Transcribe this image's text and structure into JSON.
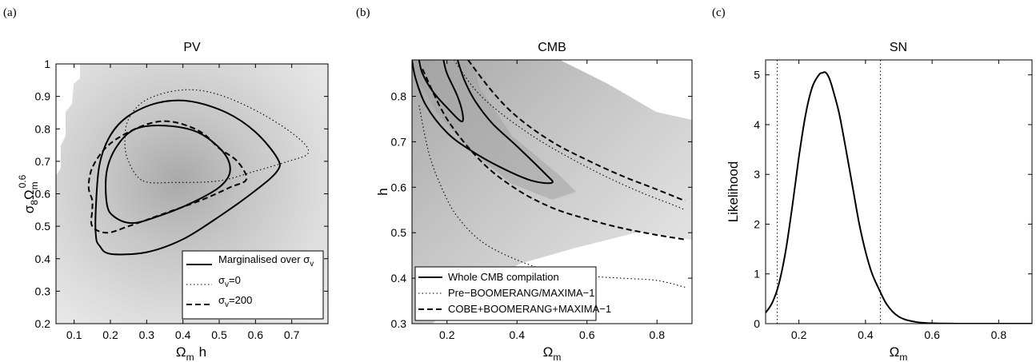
{
  "chart_data": [
    {
      "panel_label": "(a)",
      "type": "contour",
      "title": "PV",
      "xlabel_main": "Ω",
      "xlabel_sub": "m",
      "xlabel_extra": "h",
      "ylabel_a": "σ",
      "ylabel_a_sub": "8",
      "ylabel_b": "Ω",
      "ylabel_b_sub": "m",
      "ylabel_sup": "0.6",
      "xlim": [
        0.05,
        0.8
      ],
      "ylim": [
        0.2,
        1.0
      ],
      "xticks": [
        0.1,
        0.2,
        0.3,
        0.4,
        0.5,
        0.6,
        0.7
      ],
      "xtick_labels": [
        "0.1",
        "0.2",
        "0.3",
        "0.4",
        "0.5",
        "0.6",
        "0.7"
      ],
      "yticks": [
        0.2,
        0.3,
        0.4,
        0.5,
        0.6,
        0.7,
        0.8,
        0.9,
        1.0
      ],
      "ytick_labels": [
        "0.2",
        "0.3",
        "0.4",
        "0.5",
        "0.6",
        "0.7",
        "0.8",
        "0.9",
        "1"
      ],
      "background": "grey likelihood shading peaking near Ωm≈0.35, σ8Ωm^0.6≈0.7",
      "contours": [
        {
          "series": "marginalised",
          "style": "solid",
          "level": "inner",
          "points": [
            [
              0.19,
              0.57
            ],
            [
              0.21,
              0.53
            ],
            [
              0.26,
              0.51
            ],
            [
              0.33,
              0.53
            ],
            [
              0.42,
              0.57
            ],
            [
              0.5,
              0.62
            ],
            [
              0.53,
              0.67
            ],
            [
              0.51,
              0.73
            ],
            [
              0.44,
              0.79
            ],
            [
              0.35,
              0.81
            ],
            [
              0.27,
              0.8
            ],
            [
              0.22,
              0.75
            ],
            [
              0.19,
              0.67
            ]
          ]
        },
        {
          "series": "marginalised",
          "style": "solid",
          "level": "outer",
          "points": [
            [
              0.16,
              0.47
            ],
            [
              0.17,
              0.44
            ],
            [
              0.2,
              0.415
            ],
            [
              0.3,
              0.42
            ],
            [
              0.4,
              0.46
            ],
            [
              0.5,
              0.53
            ],
            [
              0.6,
              0.61
            ],
            [
              0.66,
              0.67
            ],
            [
              0.66,
              0.71
            ],
            [
              0.6,
              0.79
            ],
            [
              0.52,
              0.85
            ],
            [
              0.42,
              0.885
            ],
            [
              0.33,
              0.88
            ],
            [
              0.25,
              0.84
            ],
            [
              0.2,
              0.78
            ],
            [
              0.17,
              0.69
            ],
            [
              0.16,
              0.56
            ]
          ]
        },
        {
          "series": "sigma_v_0",
          "style": "dotted",
          "level": "1",
          "points": [
            [
              0.29,
              0.64
            ],
            [
              0.38,
              0.635
            ],
            [
              0.5,
              0.64
            ],
            [
              0.6,
              0.67
            ],
            [
              0.69,
              0.7
            ],
            [
              0.745,
              0.725
            ],
            [
              0.72,
              0.77
            ],
            [
              0.62,
              0.845
            ],
            [
              0.5,
              0.905
            ],
            [
              0.4,
              0.92
            ],
            [
              0.3,
              0.89
            ],
            [
              0.25,
              0.83
            ],
            [
              0.24,
              0.76
            ],
            [
              0.25,
              0.7
            ]
          ]
        },
        {
          "series": "sigma_v_200",
          "style": "dashed",
          "level": "1",
          "points": [
            [
              0.15,
              0.58
            ],
            [
              0.14,
              0.62
            ],
            [
              0.15,
              0.68
            ],
            [
              0.19,
              0.745
            ],
            [
              0.25,
              0.79
            ],
            [
              0.32,
              0.82
            ],
            [
              0.38,
              0.82
            ],
            [
              0.45,
              0.79
            ],
            [
              0.5,
              0.74
            ],
            [
              0.55,
              0.7
            ],
            [
              0.575,
              0.645
            ],
            [
              0.53,
              0.62
            ],
            [
              0.45,
              0.58
            ],
            [
              0.35,
              0.54
            ],
            [
              0.25,
              0.5
            ],
            [
              0.19,
              0.48
            ],
            [
              0.15,
              0.5
            ],
            [
              0.15,
              0.55
            ]
          ]
        }
      ],
      "legend": {
        "position": "bottom-right",
        "entries": [
          {
            "key": "marginalised",
            "style": "solid",
            "label_main": "Marginalised over σ",
            "label_sub": "v"
          },
          {
            "key": "sigma_v_0",
            "style": "dotted",
            "label_main": "σ",
            "label_sub": "v",
            "label_tail": "=0"
          },
          {
            "key": "sigma_v_200",
            "style": "dashed",
            "label_main": "σ",
            "label_sub": "v",
            "label_tail": "=200"
          }
        ]
      }
    },
    {
      "panel_label": "(b)",
      "type": "contour",
      "title": "CMB",
      "xlabel_main": "Ω",
      "xlabel_sub": "m",
      "ylabel": "h",
      "xlim": [
        0.1,
        0.9
      ],
      "ylim": [
        0.3,
        0.88
      ],
      "xticks": [
        0.2,
        0.4,
        0.6,
        0.8
      ],
      "xtick_labels": [
        "0.2",
        "0.4",
        "0.6",
        "0.8"
      ],
      "yticks": [
        0.3,
        0.4,
        0.5,
        0.6,
        0.7,
        0.8
      ],
      "ytick_labels": [
        "0.3",
        "0.4",
        "0.5",
        "0.6",
        "0.7",
        "0.8"
      ],
      "background": "grey likelihood band along the Ωm–h degeneracy",
      "contours": [
        {
          "series": "whole",
          "style": "solid",
          "level": "inner",
          "points": [
            [
              0.12,
              0.88
            ],
            [
              0.13,
              0.85
            ],
            [
              0.16,
              0.81
            ],
            [
              0.2,
              0.775
            ],
            [
              0.24,
              0.745
            ],
            [
              0.245,
              0.76
            ],
            [
              0.23,
              0.8
            ],
            [
              0.2,
              0.85
            ],
            [
              0.19,
              0.88
            ]
          ]
        },
        {
          "series": "whole",
          "style": "solid",
          "level": "outer",
          "points": [
            [
              0.1,
              0.88
            ],
            [
              0.11,
              0.84
            ],
            [
              0.14,
              0.78
            ],
            [
              0.2,
              0.72
            ],
            [
              0.27,
              0.68
            ],
            [
              0.35,
              0.645
            ],
            [
              0.44,
              0.615
            ],
            [
              0.5,
              0.61
            ],
            [
              0.48,
              0.63
            ],
            [
              0.4,
              0.69
            ],
            [
              0.33,
              0.74
            ],
            [
              0.28,
              0.79
            ],
            [
              0.25,
              0.835
            ],
            [
              0.23,
              0.88
            ]
          ]
        },
        {
          "series": "pre_boomerang",
          "style": "dotted",
          "level": "upper",
          "points": [
            [
              0.22,
              0.88
            ],
            [
              0.28,
              0.815
            ],
            [
              0.35,
              0.765
            ],
            [
              0.45,
              0.71
            ],
            [
              0.55,
              0.665
            ],
            [
              0.65,
              0.625
            ],
            [
              0.75,
              0.59
            ],
            [
              0.85,
              0.56
            ],
            [
              0.88,
              0.55
            ]
          ]
        },
        {
          "series": "pre_boomerang",
          "style": "dotted",
          "level": "lower",
          "points": [
            [
              0.12,
              0.78
            ],
            [
              0.15,
              0.67
            ],
            [
              0.19,
              0.59
            ],
            [
              0.23,
              0.535
            ],
            [
              0.3,
              0.48
            ],
            [
              0.4,
              0.44
            ],
            [
              0.5,
              0.415
            ],
            [
              0.6,
              0.405
            ],
            [
              0.7,
              0.4
            ],
            [
              0.8,
              0.395
            ],
            [
              0.88,
              0.38
            ]
          ]
        },
        {
          "series": "boomerang_maxima",
          "style": "dashed",
          "level": "upper",
          "points": [
            [
              0.26,
              0.88
            ],
            [
              0.33,
              0.81
            ],
            [
              0.4,
              0.755
            ],
            [
              0.5,
              0.7
            ],
            [
              0.6,
              0.66
            ],
            [
              0.7,
              0.625
            ],
            [
              0.8,
              0.595
            ],
            [
              0.88,
              0.57
            ]
          ]
        },
        {
          "series": "boomerang_maxima",
          "style": "dashed",
          "level": "lower",
          "points": [
            [
              0.13,
              0.86
            ],
            [
              0.2,
              0.75
            ],
            [
              0.3,
              0.655
            ],
            [
              0.4,
              0.595
            ],
            [
              0.5,
              0.555
            ],
            [
              0.6,
              0.53
            ],
            [
              0.7,
              0.51
            ],
            [
              0.8,
              0.495
            ],
            [
              0.88,
              0.485
            ]
          ]
        }
      ],
      "legend": {
        "position": "bottom-left",
        "entries": [
          {
            "key": "whole",
            "style": "solid",
            "label_main": "Whole CMB compilation"
          },
          {
            "key": "pre_boomerang",
            "style": "dotted",
            "label_main": "Pre−BOOMERANG/MAXIMA−1"
          },
          {
            "key": "boomerang_maxima",
            "style": "dashed",
            "label_main": "COBE+BOOMERANG+MAXIMA−1"
          }
        ]
      }
    },
    {
      "panel_label": "(c)",
      "type": "line",
      "title": "SN",
      "xlabel_main": "Ω",
      "xlabel_sub": "m",
      "ylabel": "Likelihood",
      "xlim": [
        0.1,
        0.9
      ],
      "ylim": [
        0,
        5.3
      ],
      "xticks": [
        0.2,
        0.4,
        0.6,
        0.8
      ],
      "xtick_labels": [
        "0.2",
        "0.4",
        "0.6",
        "0.8"
      ],
      "yticks": [
        0,
        1,
        2,
        3,
        4,
        5
      ],
      "ytick_labels": [
        "0",
        "1",
        "2",
        "3",
        "4",
        "5"
      ],
      "vlines": [
        0.135,
        0.445
      ],
      "series": [
        {
          "style": "solid",
          "x": [
            0.1,
            0.12,
            0.14,
            0.16,
            0.18,
            0.2,
            0.22,
            0.24,
            0.26,
            0.27,
            0.28,
            0.29,
            0.3,
            0.32,
            0.34,
            0.36,
            0.38,
            0.4,
            0.42,
            0.44,
            0.46,
            0.48,
            0.5,
            0.52,
            0.55,
            0.58,
            0.62,
            0.66,
            0.7,
            0.8,
            0.9
          ],
          "y": [
            0.22,
            0.42,
            0.8,
            1.45,
            2.35,
            3.35,
            4.2,
            4.75,
            5.0,
            5.04,
            5.05,
            4.95,
            4.75,
            4.25,
            3.55,
            2.8,
            2.05,
            1.45,
            1.0,
            0.7,
            0.43,
            0.25,
            0.14,
            0.08,
            0.035,
            0.015,
            0.005,
            0.002,
            0.0,
            0.0,
            0.0
          ]
        }
      ]
    }
  ]
}
